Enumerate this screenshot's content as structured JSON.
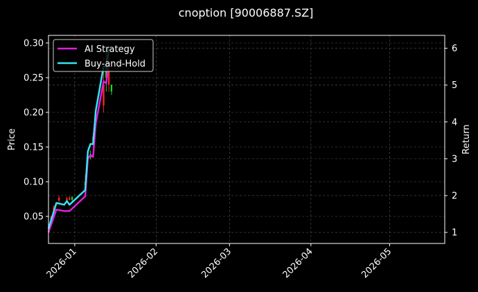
{
  "chart_data": {
    "type": "line",
    "title": "cnoption [90006887.SZ]",
    "xlabel": "",
    "ylabel": "Price",
    "ylabel_right": "Return",
    "ylim": [
      0.011,
      0.311
    ],
    "ylim_right": [
      0.7,
      6.35
    ],
    "xlim": [
      "2025-12-22",
      "2026-05-22"
    ],
    "grid": true,
    "legend_position": "upper left",
    "x_ticks": [
      "2026-01",
      "2026-02",
      "2026-03",
      "2026-04",
      "2026-05"
    ],
    "y_ticks_left": [
      "0.05",
      "0.10",
      "0.15",
      "0.20",
      "0.25",
      "0.30"
    ],
    "y_ticks_right": [
      "1",
      "2",
      "3",
      "4",
      "5",
      "6"
    ],
    "x": [
      "2025-12-22",
      "2025-12-25",
      "2025-12-28",
      "2025-12-29",
      "2025-12-30",
      "2026-01-05",
      "2026-01-06",
      "2026-01-07",
      "2026-01-08",
      "2026-01-09",
      "2026-01-12",
      "2026-01-13",
      "2026-01-14"
    ],
    "series": [
      {
        "name": "AI Strategy",
        "color": "#e01ee0",
        "axis": "right",
        "values": [
          1.0,
          1.62,
          1.58,
          1.58,
          1.58,
          1.98,
          3.0,
          3.1,
          3.05,
          3.95,
          5.1,
          5.05,
          5.6
        ]
      },
      {
        "name": "Buy-and-Hold",
        "color": "#33e6f0",
        "axis": "right",
        "values": [
          1.1,
          1.8,
          1.75,
          1.85,
          1.75,
          2.15,
          3.2,
          3.4,
          3.4,
          4.3,
          5.5,
          5.5,
          6.0
        ]
      }
    ],
    "candles": [
      {
        "date": "2025-12-23",
        "open": 0.043,
        "close": 0.049,
        "high": 0.051,
        "low": 0.041,
        "color": "#ff2222"
      },
      {
        "date": "2025-12-24",
        "open": 0.055,
        "close": 0.063,
        "high": 0.066,
        "low": 0.052,
        "color": "#ff2222"
      },
      {
        "date": "2025-12-26",
        "open": 0.073,
        "close": 0.077,
        "high": 0.08,
        "low": 0.07,
        "color": "#ff2222"
      },
      {
        "date": "2025-12-29",
        "open": 0.073,
        "close": 0.076,
        "high": 0.078,
        "low": 0.071,
        "color": "#ff2222"
      },
      {
        "date": "2025-12-30",
        "open": 0.074,
        "close": 0.077,
        "high": 0.079,
        "low": 0.073,
        "color": "#ff2222"
      },
      {
        "date": "2025-12-31",
        "open": 0.078,
        "close": 0.074,
        "high": 0.079,
        "low": 0.072,
        "color": "#22cc22"
      },
      {
        "date": "2026-01-05",
        "open": 0.095,
        "close": 0.1,
        "high": 0.11,
        "low": 0.093,
        "color": "#ff2222"
      },
      {
        "date": "2026-01-07",
        "open": 0.135,
        "close": 0.14,
        "high": 0.145,
        "low": 0.132,
        "color": "#22cc22"
      },
      {
        "date": "2026-01-08",
        "open": 0.155,
        "close": 0.165,
        "high": 0.17,
        "low": 0.15,
        "color": "#ff2222"
      },
      {
        "date": "2026-01-12",
        "open": 0.21,
        "close": 0.24,
        "high": 0.28,
        "low": 0.2,
        "color": "#ff2222"
      },
      {
        "date": "2026-01-13",
        "open": 0.27,
        "close": 0.25,
        "high": 0.29,
        "low": 0.23,
        "color": "#22cc22"
      },
      {
        "date": "2026-01-14",
        "open": 0.26,
        "close": 0.24,
        "high": 0.29,
        "low": 0.23,
        "color": "#ff2222"
      },
      {
        "date": "2026-01-15",
        "open": 0.24,
        "close": 0.23,
        "high": 0.24,
        "low": 0.225,
        "color": "#22cc22"
      }
    ]
  },
  "legend": {
    "items": [
      {
        "label": "AI Strategy",
        "color": "#e01ee0"
      },
      {
        "label": "Buy-and-Hold",
        "color": "#33e6f0"
      }
    ]
  },
  "colors": {
    "background": "#000000",
    "axes": "#ffffff",
    "grid": "#555555"
  }
}
